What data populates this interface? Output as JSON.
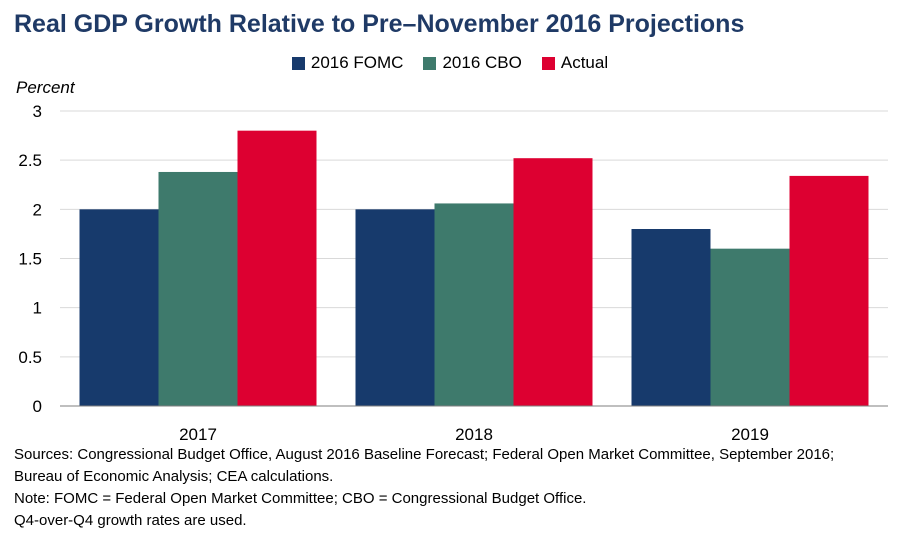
{
  "title": "Real GDP Growth Relative to Pre–November 2016 Projections",
  "chart_data": {
    "type": "bar",
    "title": "Real GDP Growth Relative to Pre–November 2016 Projections",
    "ylabel": "Percent",
    "xlabel": "",
    "categories": [
      "2017",
      "2018",
      "2019"
    ],
    "series": [
      {
        "name": "2016 FOMC",
        "color": "#173a6c",
        "values": [
          2.0,
          2.0,
          1.8
        ]
      },
      {
        "name": "2016 CBO",
        "color": "#3e7a6c",
        "values": [
          2.38,
          2.06,
          1.6
        ]
      },
      {
        "name": "Actual",
        "color": "#dd0031",
        "values": [
          2.8,
          2.52,
          2.34
        ]
      }
    ],
    "ylim": [
      0,
      3
    ],
    "yticks": [
      "0",
      "0.5",
      "1",
      "1.5",
      "2",
      "2.5",
      "3"
    ],
    "grid": true,
    "legend": "top-center"
  },
  "notes": {
    "sources": "Sources: Congressional Budget Office, August 2016 Baseline Forecast; Federal Open Market Committee, September 2016; Bureau of Economic Analysis; CEA calculations.",
    "note": "Note: FOMC = Federal Open Market Committee; CBO = Congressional Budget Office.",
    "note2": "Q4-over-Q4 growth rates are used."
  }
}
